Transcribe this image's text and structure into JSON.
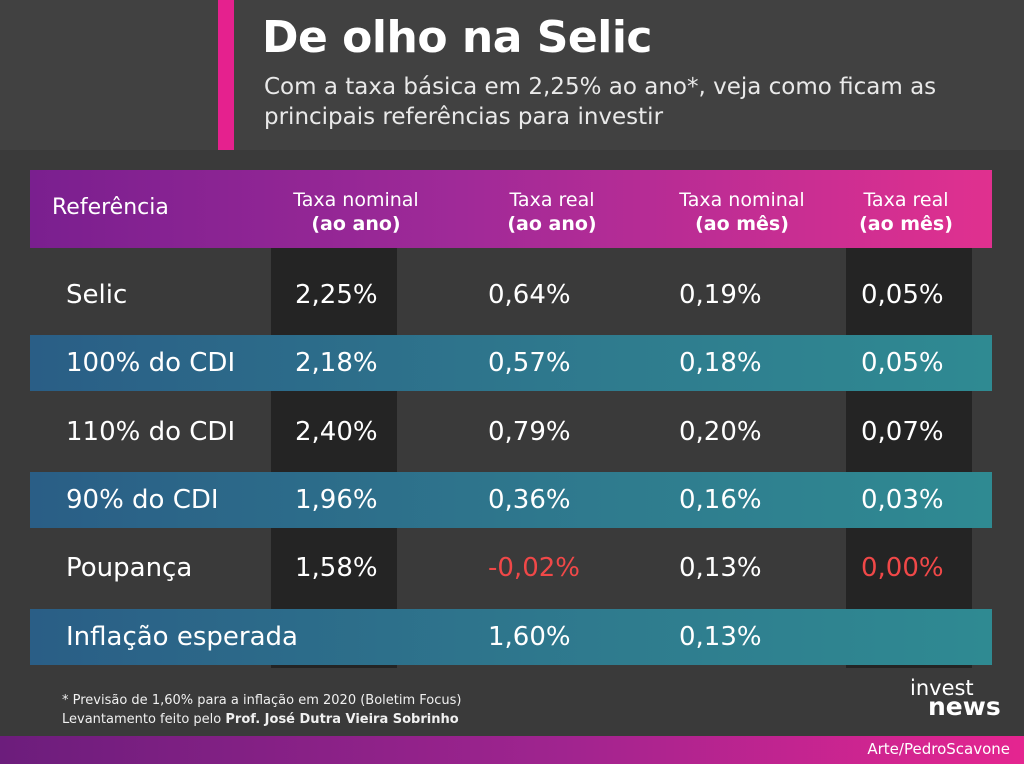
{
  "title": "De olho na Selic",
  "subtitle": "Com a taxa básica em 2,25% ao ano*, veja como ficam as principais referências para investir",
  "table": {
    "headers": [
      {
        "line1": "Referência",
        "line2": ""
      },
      {
        "line1": "Taxa nominal",
        "line2": "(ao ano)"
      },
      {
        "line1": "Taxa real",
        "line2": "(ao ano)"
      },
      {
        "line1": "Taxa nominal",
        "line2": "(ao mês)"
      },
      {
        "line1": "Taxa real",
        "line2": "(ao mês)"
      }
    ],
    "rows": [
      {
        "ref": "Selic",
        "nom_ano": "2,25%",
        "real_ano": "0,64%",
        "nom_mes": "0,19%",
        "real_mes": "0,05%"
      },
      {
        "ref": "100% do CDI",
        "nom_ano": "2,18%",
        "real_ano": "0,57%",
        "nom_mes": "0,18%",
        "real_mes": "0,05%"
      },
      {
        "ref": "110% do CDI",
        "nom_ano": "2,40%",
        "real_ano": "0,79%",
        "nom_mes": "0,20%",
        "real_mes": "0,07%"
      },
      {
        "ref": "90% do CDI",
        "nom_ano": "1,96%",
        "real_ano": "0,36%",
        "nom_mes": "0,16%",
        "real_mes": "0,03%"
      },
      {
        "ref": "Poupança",
        "nom_ano": "1,58%",
        "real_ano": "-0,02%",
        "nom_mes": "0,13%",
        "real_mes": "0,00%"
      },
      {
        "ref": "Inflação esperada",
        "nom_ano": "",
        "real_ano": "1,60%",
        "nom_mes": "0,13%",
        "real_mes": ""
      }
    ]
  },
  "footnote": {
    "line1": "* Previsão de 1,60% para a inflação em 2020 (Boletim Focus)",
    "line2_prefix": "Levantamento feito pelo ",
    "line2_author": "Prof. José Dutra Vieira Sobrinho"
  },
  "logo": {
    "line1": "invest",
    "line2": "news"
  },
  "credit": "Arte/PedroScavone",
  "colors": {
    "accent": "#e5218e",
    "negative": "#f04848",
    "stripe": "#2f7b8e",
    "background": "#3a3a3a"
  }
}
